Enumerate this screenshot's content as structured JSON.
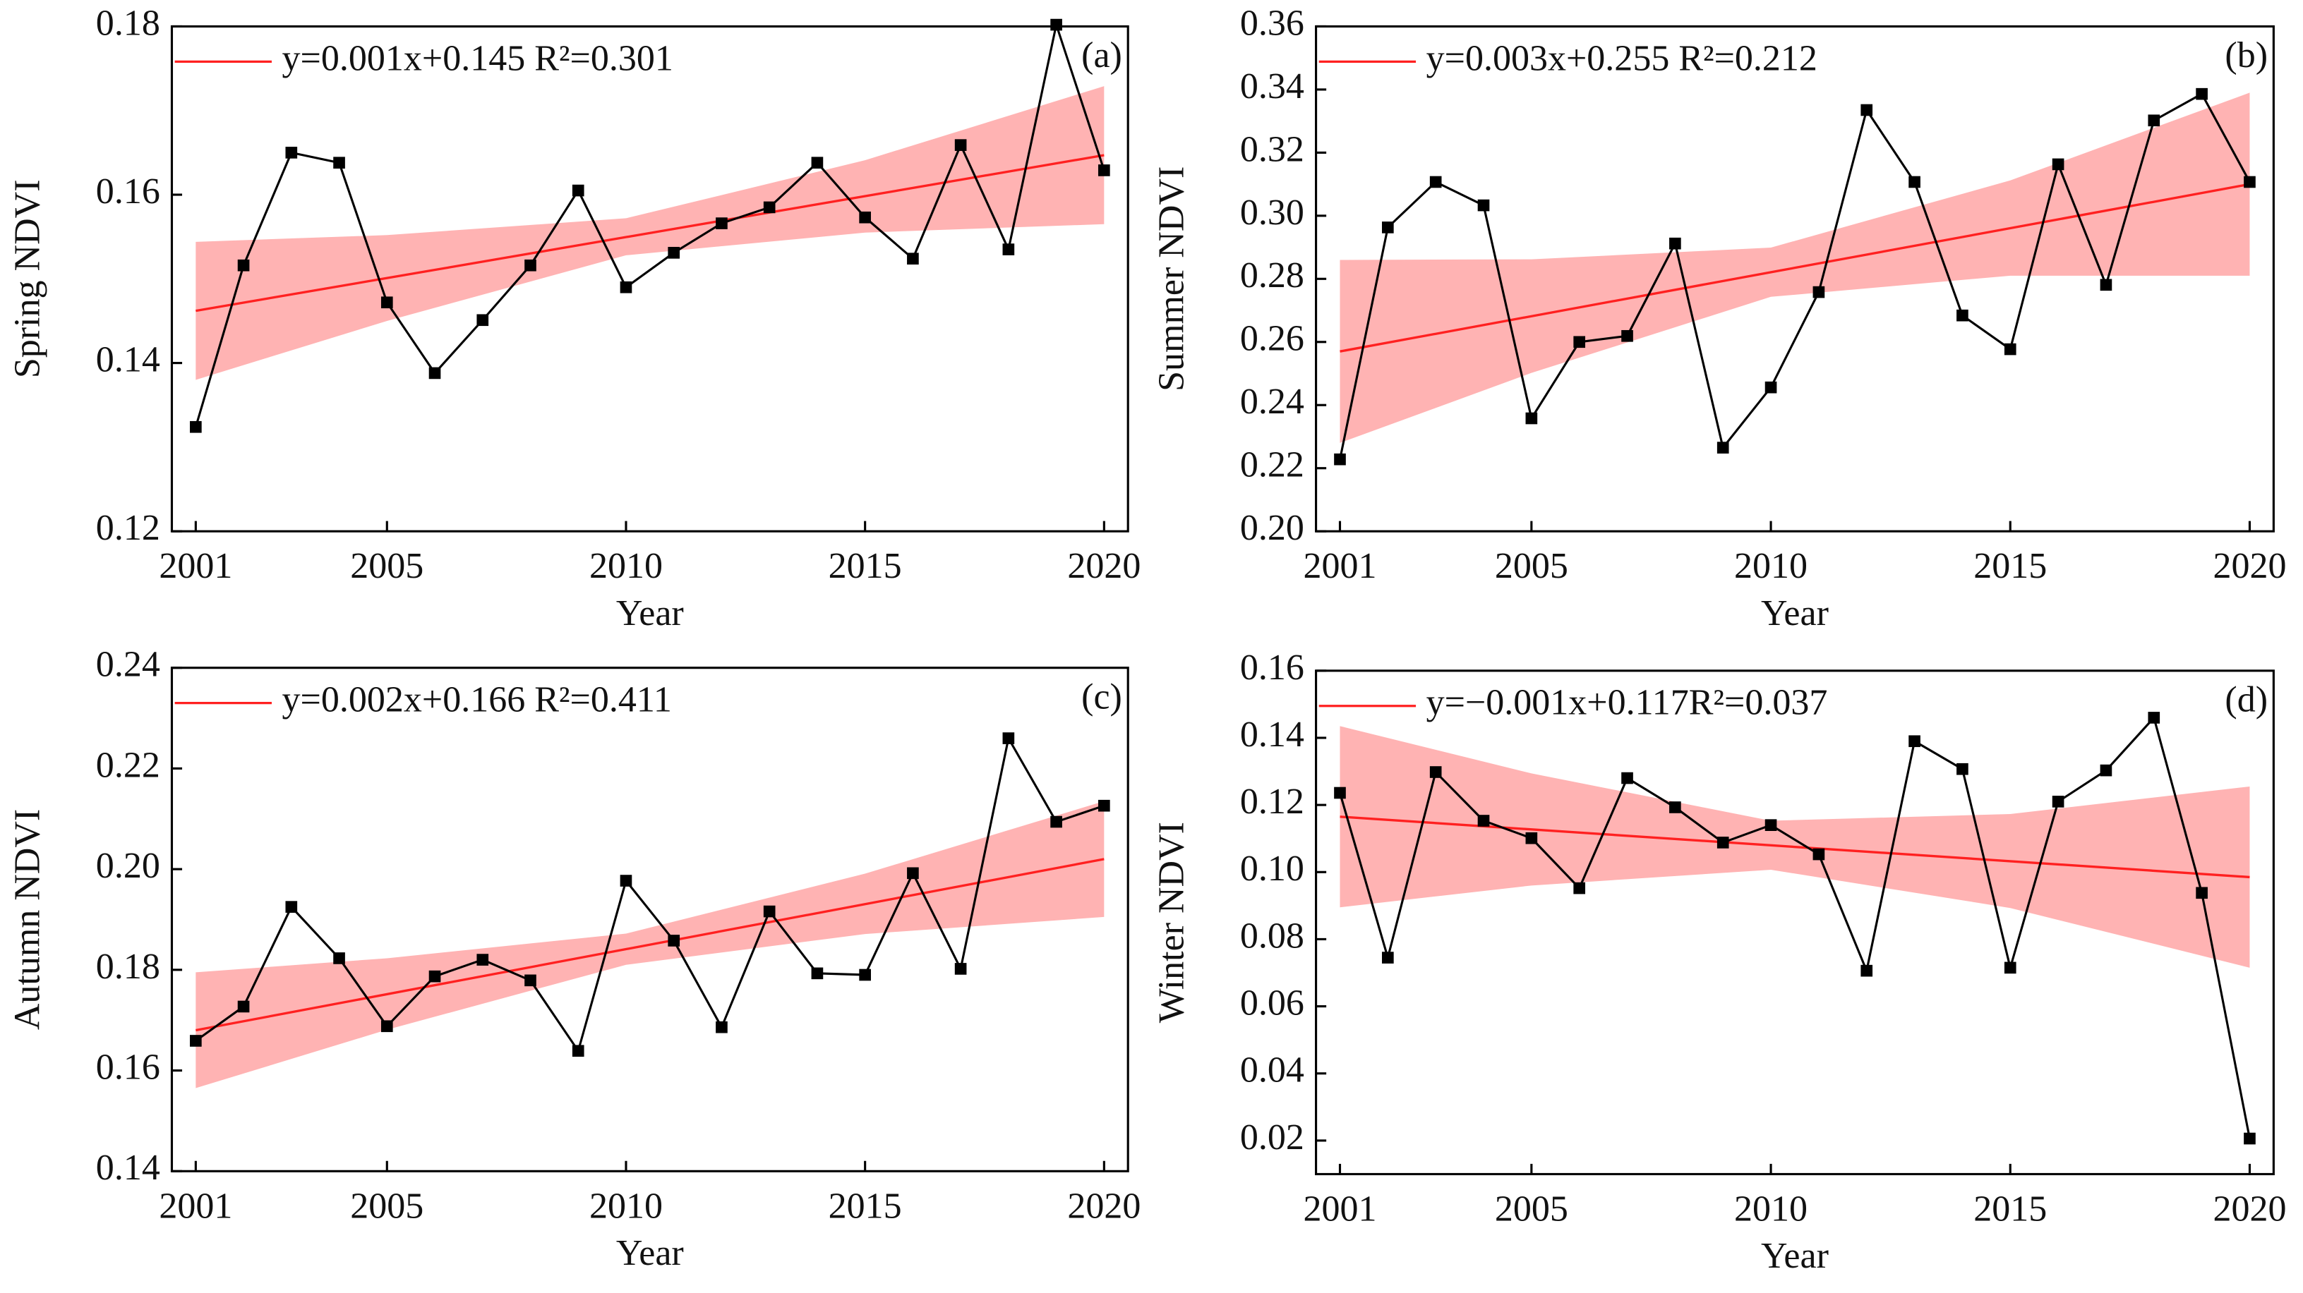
{
  "chart_data": [
    {
      "type": "line",
      "panel_label": "(a)",
      "ylabel": "Spring NDVI",
      "xlabel": "Year",
      "x": [
        2001,
        2002,
        2003,
        2004,
        2005,
        2006,
        2007,
        2008,
        2009,
        2010,
        2011,
        2012,
        2013,
        2014,
        2015,
        2016,
        2017,
        2018,
        2019,
        2020
      ],
      "xlim": [
        2000.5,
        2020.5
      ],
      "xticks": [
        2001,
        2005,
        2010,
        2015,
        2020
      ],
      "ylim": [
        0.12,
        0.18
      ],
      "yticks": [
        0.12,
        0.14,
        0.16,
        0.18
      ],
      "series": [
        {
          "color": "#000000",
          "values": [
            0.1324,
            0.1516,
            0.165,
            0.1638,
            0.1472,
            0.1388,
            0.1451,
            0.1516,
            0.1605,
            0.149,
            0.1531,
            0.1566,
            0.1585,
            0.1638,
            0.1573,
            0.1524,
            0.1659,
            0.1535,
            0.1802,
            0.1629
          ]
        }
      ],
      "trend": {
        "name": "y=0.001x+0.145 R²=0.301",
        "color": "#ff2020",
        "x": [
          2001,
          2020
        ],
        "values": [
          0.1462,
          0.1647
        ]
      },
      "band": {
        "color": "#ffb3b3",
        "x": [
          2001,
          2005,
          2010,
          2015,
          2020
        ],
        "lower": [
          0.138,
          0.145,
          0.1528,
          0.1555,
          0.1565
        ],
        "upper": [
          0.1544,
          0.1552,
          0.1572,
          0.1641,
          0.1729
        ]
      }
    },
    {
      "type": "line",
      "panel_label": "(b)",
      "ylabel": "Summer NDVI",
      "xlabel": "Year",
      "x": [
        2001,
        2002,
        2003,
        2004,
        2005,
        2006,
        2007,
        2008,
        2009,
        2010,
        2011,
        2012,
        2013,
        2014,
        2015,
        2016,
        2017,
        2018,
        2019,
        2020
      ],
      "xlim": [
        2000.5,
        2020.5
      ],
      "xticks": [
        2001,
        2005,
        2010,
        2015,
        2020
      ],
      "ylim": [
        0.2,
        0.36
      ],
      "yticks": [
        {
          "value": 0.2,
          "label": "0.20"
        },
        0.22,
        0.24,
        0.26,
        0.28,
        {
          "value": 0.3,
          "label": "0.30"
        },
        0.32,
        0.34,
        0.36
      ],
      "series": [
        {
          "color": "#000000",
          "values": [
            0.2228,
            0.2963,
            0.3107,
            0.3033,
            0.2358,
            0.26,
            0.2619,
            0.2912,
            0.2265,
            0.2456,
            0.2758,
            0.3335,
            0.3107,
            0.2684,
            0.2577,
            0.3163,
            0.2781,
            0.3302,
            0.3386,
            0.3107
          ]
        }
      ],
      "trend": {
        "name": "y=0.003x+0.255 R²=0.212",
        "color": "#ff2020",
        "x": [
          2001,
          2020
        ],
        "values": [
          0.257,
          0.31
        ]
      },
      "band": {
        "color": "#ffb3b3",
        "x": [
          2001,
          2005,
          2010,
          2015,
          2020
        ],
        "lower": [
          0.228,
          0.2502,
          0.2743,
          0.281,
          0.281
        ],
        "upper": [
          0.286,
          0.2862,
          0.2899,
          0.3112,
          0.339
        ]
      }
    },
    {
      "type": "line",
      "panel_label": "(c)",
      "ylabel": "Autumn NDVI",
      "xlabel": "Year",
      "x": [
        2001,
        2002,
        2003,
        2004,
        2005,
        2006,
        2007,
        2008,
        2009,
        2010,
        2011,
        2012,
        2013,
        2014,
        2015,
        2016,
        2017,
        2018,
        2019,
        2020
      ],
      "xlim": [
        2000.5,
        2020.5
      ],
      "xticks": [
        2001,
        2005,
        2010,
        2015,
        2020
      ],
      "ylim": [
        0.14,
        0.24
      ],
      "yticks": [
        0.14,
        0.16,
        0.18,
        {
          "value": 0.2,
          "label": "0.20"
        },
        0.22,
        0.24
      ],
      "series": [
        {
          "color": "#000000",
          "values": [
            0.1659,
            0.1727,
            0.1925,
            0.1823,
            0.1688,
            0.1787,
            0.182,
            0.1779,
            0.1639,
            0.1977,
            0.1858,
            0.1686,
            0.1916,
            0.1793,
            0.179,
            0.1992,
            0.1802,
            0.226,
            0.2094,
            0.2126
          ]
        }
      ],
      "trend": {
        "name": "y=0.002x+0.166 R²=0.411",
        "color": "#ff2020",
        "x": [
          2001,
          2020
        ],
        "values": [
          0.168,
          0.202
        ]
      },
      "band": {
        "color": "#ffb3b3",
        "x": [
          2001,
          2005,
          2010,
          2015,
          2020
        ],
        "lower": [
          0.1565,
          0.1681,
          0.181,
          0.1871,
          0.1905
        ],
        "upper": [
          0.1795,
          0.1823,
          0.1872,
          0.1991,
          0.2135
        ]
      }
    },
    {
      "type": "line",
      "panel_label": "(d)",
      "ylabel": "Winter NDVI",
      "xlabel": "Year",
      "x": [
        2001,
        2002,
        2003,
        2004,
        2005,
        2006,
        2007,
        2008,
        2009,
        2010,
        2011,
        2012,
        2013,
        2014,
        2015,
        2016,
        2017,
        2018,
        2019,
        2020
      ],
      "xlim": [
        2000.5,
        2020.5
      ],
      "xticks": [
        2001,
        2005,
        2010,
        2015,
        2020
      ],
      "ylim": [
        0.01,
        0.16
      ],
      "yticks": [
        0.02,
        0.04,
        0.06,
        0.08,
        {
          "value": 0.1,
          "label": "0.10"
        },
        0.12,
        0.14,
        0.16
      ],
      "series": [
        {
          "color": "#000000",
          "values": [
            0.1236,
            0.0745,
            0.1298,
            0.1153,
            0.1101,
            0.0952,
            0.128,
            0.1193,
            0.1088,
            0.114,
            0.1053,
            0.0706,
            0.139,
            0.1307,
            0.0715,
            0.121,
            0.1303,
            0.146,
            0.0938,
            0.0206
          ]
        }
      ],
      "trend": {
        "name": "y=−0.001x+0.117R²=0.037",
        "color": "#ff2020",
        "x": [
          2001,
          2020
        ],
        "values": [
          0.1165,
          0.0985
        ]
      },
      "band": {
        "color": "#ffb3b3",
        "x": [
          2001,
          2005,
          2010,
          2015,
          2020
        ],
        "lower": [
          0.0895,
          0.096,
          0.1007,
          0.0893,
          0.0715
        ],
        "upper": [
          0.1435,
          0.1294,
          0.1153,
          0.1173,
          0.1255
        ]
      }
    }
  ]
}
